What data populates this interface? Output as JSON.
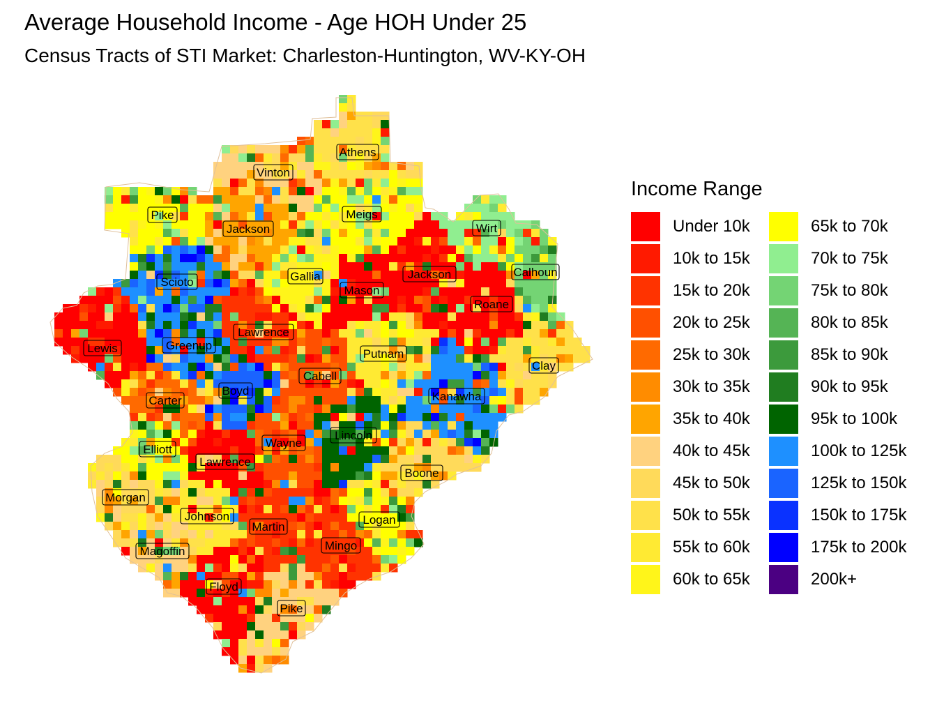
{
  "title": "Average Household Income - Age HOH Under 25",
  "subtitle": "Census Tracts of STI Market: Charleston-Huntington, WV-KY-OH",
  "legend": {
    "title": "Income Range",
    "items": [
      {
        "label": "Under 10k",
        "color": "#FF0000"
      },
      {
        "label": "10k to 15k",
        "color": "#FF1A00"
      },
      {
        "label": "15k to 20k",
        "color": "#FF3300"
      },
      {
        "label": "20k to 25k",
        "color": "#FF5000"
      },
      {
        "label": "25k to 30k",
        "color": "#FF6A00"
      },
      {
        "label": "30k to 35k",
        "color": "#FF8C00"
      },
      {
        "label": "35k to 40k",
        "color": "#FFA500"
      },
      {
        "label": "40k to 45k",
        "color": "#FFD27F"
      },
      {
        "label": "45k to 50k",
        "color": "#FFDA5A"
      },
      {
        "label": "50k to 55k",
        "color": "#FFE14A"
      },
      {
        "label": "55k to 60k",
        "color": "#FFEA33"
      },
      {
        "label": "60k to 65k",
        "color": "#FFF51A"
      },
      {
        "label": "65k to 70k",
        "color": "#FFFF00"
      },
      {
        "label": "70k to 75k",
        "color": "#90EE90"
      },
      {
        "label": "75k to 80k",
        "color": "#74D474"
      },
      {
        "label": "80k to 85k",
        "color": "#55B455"
      },
      {
        "label": "85k to 90k",
        "color": "#3C9A3C"
      },
      {
        "label": "90k to 95k",
        "color": "#207D20"
      },
      {
        "label": "95k to 100k",
        "color": "#006400"
      },
      {
        "label": "100k to 125k",
        "color": "#1E90FF"
      },
      {
        "label": "125k to 150k",
        "color": "#1A64FF"
      },
      {
        "label": "150k to 175k",
        "color": "#0A32FF"
      },
      {
        "label": "175k to 200k",
        "color": "#0000FF"
      },
      {
        "label": "200k+",
        "color": "#4B0082"
      }
    ]
  },
  "counties": [
    {
      "name": "Athens",
      "income_class": 9
    },
    {
      "name": "Vinton",
      "income_class": 7
    },
    {
      "name": "Meigs",
      "income_class": 12
    },
    {
      "name": "Pike",
      "income_class": 12
    },
    {
      "name": "Jackson",
      "income_class": 6
    },
    {
      "name": "Wirt",
      "income_class": 13
    },
    {
      "name": "Calhoun",
      "income_class": 14
    },
    {
      "name": "Jackson",
      "income_class": 0
    },
    {
      "name": "Scioto",
      "income_class": 19
    },
    {
      "name": "Gallia",
      "income_class": 11
    },
    {
      "name": "Mason",
      "income_class": 0
    },
    {
      "name": "Roane",
      "income_class": 0
    },
    {
      "name": "Lawrence",
      "income_class": 2
    },
    {
      "name": "Lewis",
      "income_class": 0
    },
    {
      "name": "Greenup",
      "income_class": 19
    },
    {
      "name": "Putnam",
      "income_class": 10
    },
    {
      "name": "Clay",
      "income_class": 9
    },
    {
      "name": "Cabell",
      "income_class": 3
    },
    {
      "name": "Boyd",
      "income_class": 20
    },
    {
      "name": "Kanawha",
      "income_class": 19
    },
    {
      "name": "Carter",
      "income_class": 4
    },
    {
      "name": "Lincoln",
      "income_class": 18
    },
    {
      "name": "Wayne",
      "income_class": 3
    },
    {
      "name": "Elliott",
      "income_class": 12
    },
    {
      "name": "Lawrence",
      "income_class": 0
    },
    {
      "name": "Boone",
      "income_class": 8
    },
    {
      "name": "Morgan",
      "income_class": 8
    },
    {
      "name": "Johnson",
      "income_class": 10
    },
    {
      "name": "Logan",
      "income_class": 12
    },
    {
      "name": "Martin",
      "income_class": 2
    },
    {
      "name": "Magoffin",
      "income_class": 7
    },
    {
      "name": "Mingo",
      "income_class": 2
    },
    {
      "name": "Floyd",
      "income_class": 0
    },
    {
      "name": "Pike",
      "income_class": 7
    }
  ]
}
